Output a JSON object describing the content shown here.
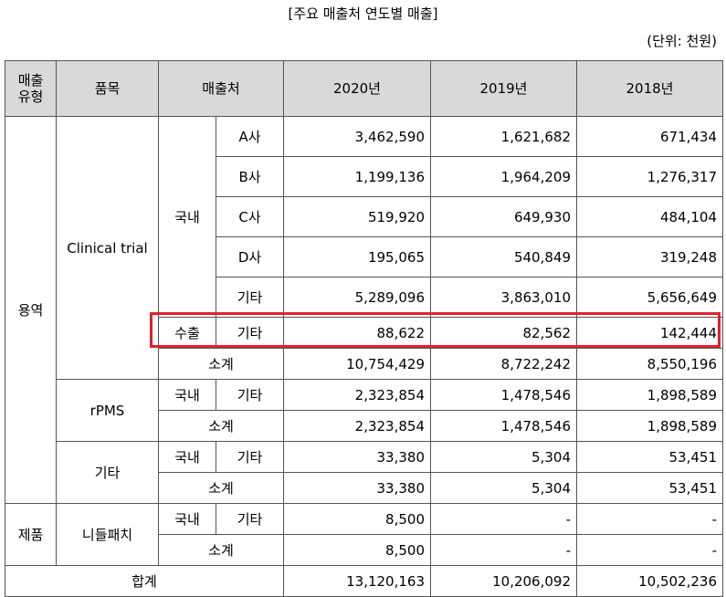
{
  "title": "[주요 매출처 연도별 매출]",
  "unit": "(단위: 천원)",
  "header": {
    "type_line1": "매출",
    "type_line2": "유형",
    "item": "품목",
    "customer": "매출처",
    "y2020": "2020년",
    "y2019": "2019년",
    "y2018": "2018년"
  },
  "labels": {
    "service": "용역",
    "product": "제품",
    "clinical": "Clinical trial",
    "rpms": "rPMS",
    "other_item": "기타",
    "needle": "니들패치",
    "domestic": "국내",
    "export": "수출",
    "subtotal": "소계",
    "total": "합계"
  },
  "rows": {
    "a": {
      "label": "A사",
      "v2020": "3,462,590",
      "v2019": "1,621,682",
      "v2018": "671,434"
    },
    "b": {
      "label": "B사",
      "v2020": "1,199,136",
      "v2019": "1,964,209",
      "v2018": "1,276,317"
    },
    "c": {
      "label": "C사",
      "v2020": "519,920",
      "v2019": "649,930",
      "v2018": "484,104"
    },
    "d": {
      "label": "D사",
      "v2020": "195,065",
      "v2019": "540,849",
      "v2018": "319,248"
    },
    "ct_other": {
      "label": "기타",
      "v2020": "5,289,096",
      "v2019": "3,863,010",
      "v2018": "5,656,649"
    },
    "ct_export": {
      "label": "기타",
      "v2020": "88,622",
      "v2019": "82,562",
      "v2018": "142,444"
    },
    "ct_sub": {
      "v2020": "10,754,429",
      "v2019": "8,722,242",
      "v2018": "8,550,196"
    },
    "rp_other": {
      "label": "기타",
      "v2020": "2,323,854",
      "v2019": "1,478,546",
      "v2018": "1,898,589"
    },
    "rp_sub": {
      "v2020": "2,323,854",
      "v2019": "1,478,546",
      "v2018": "1,898,589"
    },
    "ot_other": {
      "label": "기타",
      "v2020": "33,380",
      "v2019": "5,304",
      "v2018": "53,451"
    },
    "ot_sub": {
      "v2020": "33,380",
      "v2019": "5,304",
      "v2018": "53,451"
    },
    "np_other": {
      "label": "기타",
      "v2020": "8,500",
      "v2019": "-",
      "v2018": "-"
    },
    "np_sub": {
      "v2020": "8,500",
      "v2019": "-",
      "v2018": "-"
    },
    "total": {
      "v2020": "13,120,163",
      "v2019": "10,206,092",
      "v2018": "10,502,236"
    }
  },
  "highlight_color": "#e3202d"
}
